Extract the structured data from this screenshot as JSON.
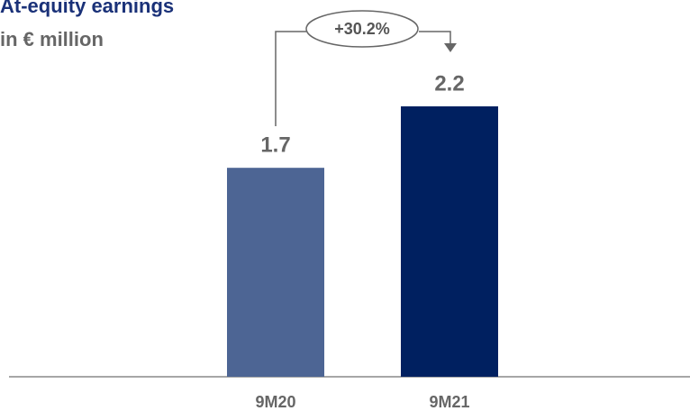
{
  "chart_data": {
    "type": "bar",
    "title": "At-equity earnings",
    "subtitle": "in € million",
    "categories": [
      "9M20",
      "9M21"
    ],
    "values": [
      1.7,
      2.2
    ],
    "colors": [
      "#4d6594",
      "#002060"
    ],
    "annotation": "+30.2%"
  }
}
